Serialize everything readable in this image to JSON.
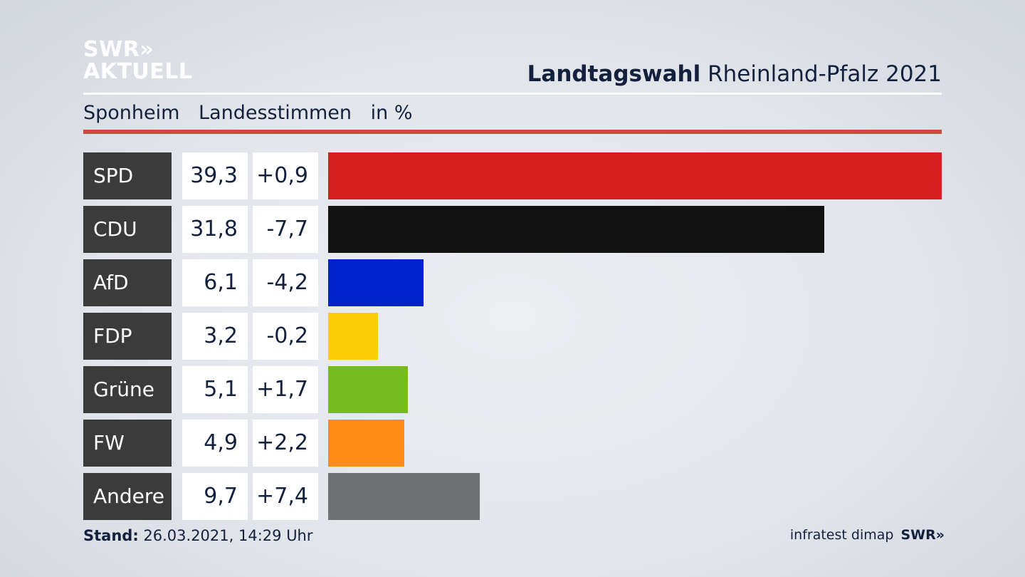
{
  "logo": {
    "line1": "SWR",
    "line1_chevrons": "»",
    "line2": "AKTUELL"
  },
  "header": {
    "title_bold": "Landtagswahl",
    "title_rest": "Rheinland-Pfalz 2021"
  },
  "subheader": {
    "place": "Sponheim",
    "vote_type": "Landesstimmen",
    "unit": "in %"
  },
  "chart_data": {
    "type": "bar",
    "orientation": "horizontal",
    "categories": [
      "SPD",
      "CDU",
      "AfD",
      "FDP",
      "Grüne",
      "FW",
      "Andere"
    ],
    "values": [
      39.3,
      31.8,
      6.1,
      3.2,
      5.1,
      4.9,
      9.7
    ],
    "value_labels": [
      "39,3",
      "31,8",
      "6,1",
      "3,2",
      "5,1",
      "4,9",
      "9,7"
    ],
    "change_labels": [
      "+0,9",
      "-7,7",
      "-4,2",
      "-0,2",
      "+1,7",
      "+2,2",
      "+7,4"
    ],
    "changes": [
      0.9,
      -7.7,
      -4.2,
      -0.2,
      1.7,
      2.2,
      7.4
    ],
    "colors": [
      "#d51f1f",
      "#121212",
      "#0022cc",
      "#ffcc0a",
      "#76bc1e",
      "#ff8c16",
      "#707173"
    ],
    "xlim": [
      0,
      39.3
    ],
    "grid": false,
    "legend": "none"
  },
  "footer": {
    "stand_label": "Stand:",
    "stand_value": "26.03.2021, 14:29 Uhr",
    "source": "infratest dimap",
    "brand": "SWR",
    "brand_chevrons": "»"
  }
}
